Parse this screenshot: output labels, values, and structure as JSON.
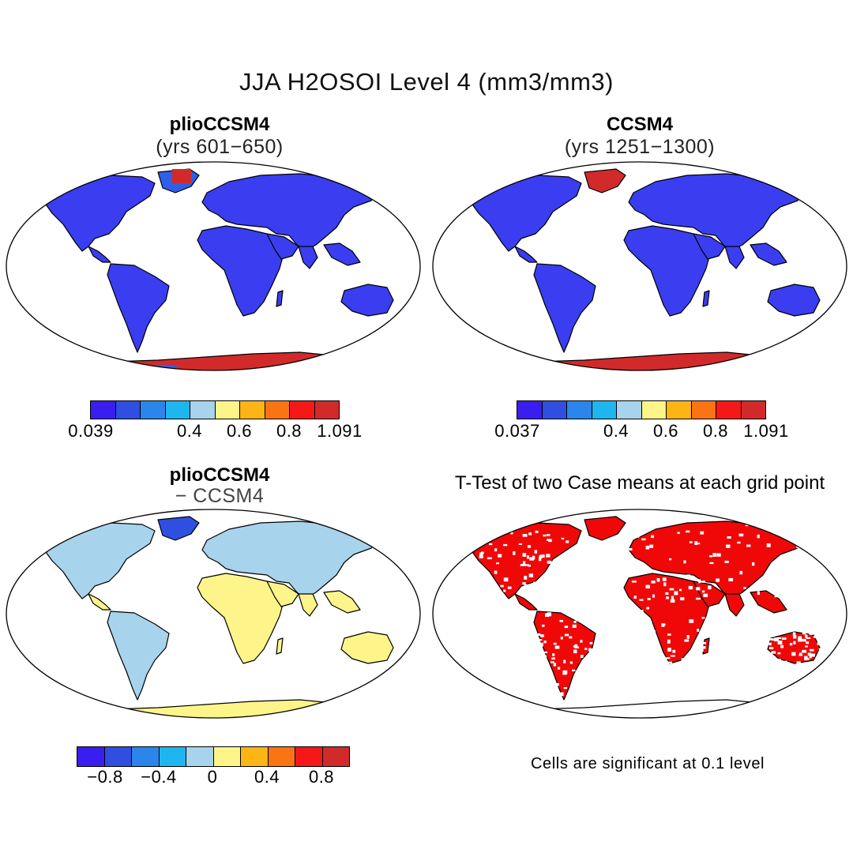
{
  "title": "JJA H2OSOI Level 4 (mm3/mm3)",
  "panels": {
    "top_left": {
      "title": "plioCCSM4",
      "subtitle": "(yrs 601−650)"
    },
    "top_right": {
      "title": "CCSM4",
      "subtitle": "(yrs 1251−1300)"
    },
    "bottom_left": {
      "title": "plioCCSM4",
      "subtitle": "− CCSM4"
    },
    "bottom_right": {
      "title": "T-Test of two Case means at each grid point"
    }
  },
  "colorbars": {
    "top_left": {
      "colors": [
        "#3a1ef0",
        "#2f4fe0",
        "#2a86ea",
        "#1fb6f0",
        "#a8d3ec",
        "#fdf589",
        "#fcb515",
        "#fa7414",
        "#f51818",
        "#d22a2a"
      ],
      "ticks": [
        "0.039",
        "0.4",
        "0.6",
        "0.8",
        "1.091"
      ]
    },
    "top_right": {
      "colors": [
        "#3a1ef0",
        "#2f4fe0",
        "#2a86ea",
        "#1fb6f0",
        "#a8d3ec",
        "#fdf589",
        "#fcb515",
        "#fa7414",
        "#f51818",
        "#d22a2a"
      ],
      "ticks": [
        "0.037",
        "0.4",
        "0.6",
        "0.8",
        "1.091"
      ]
    },
    "bottom_left": {
      "colors": [
        "#3a1ef0",
        "#2f4fe0",
        "#2a86ea",
        "#1fb6f0",
        "#a8d3ec",
        "#fdf589",
        "#fcb515",
        "#fa7414",
        "#f51818",
        "#d22a2a"
      ],
      "ticks": [
        "−0.8",
        "−0.4",
        "0",
        "0.4",
        "0.8"
      ]
    }
  },
  "footnote": "Cells are significant at 0.1 level",
  "map_colors": {
    "land_wet": "#3a3ef0",
    "land_mid": "#2f5fe6",
    "ice": "#d22a2a",
    "diff_light_blue": "#a8d3ec",
    "diff_yellow": "#fdf589",
    "diff_dark_blue": "#2f4fe0",
    "significant": "#f00808"
  }
}
